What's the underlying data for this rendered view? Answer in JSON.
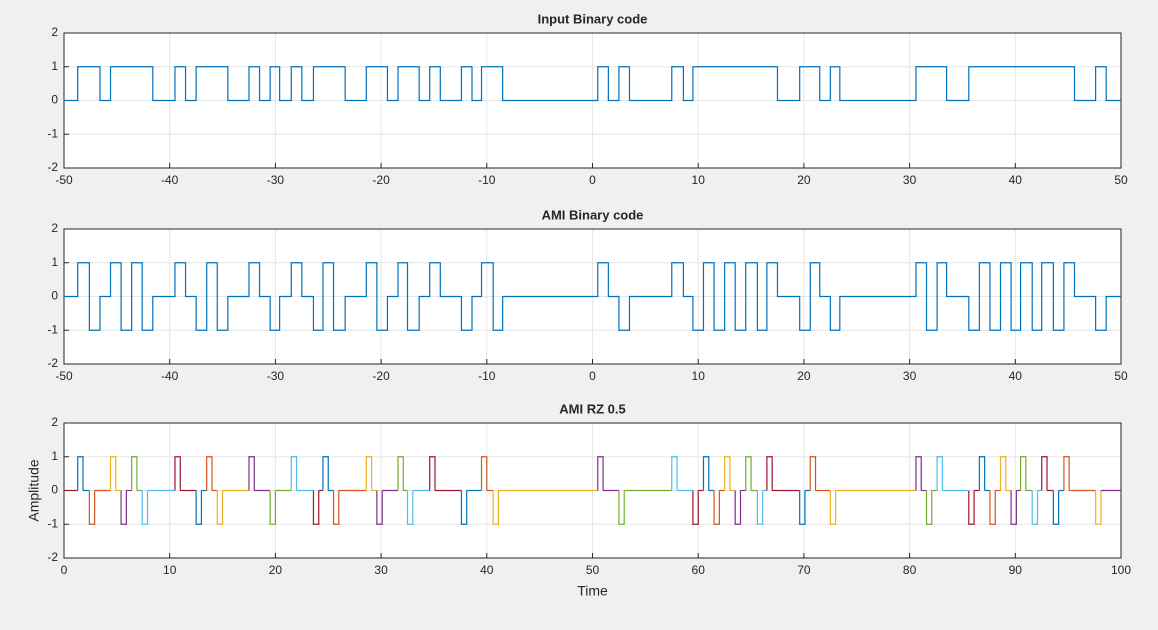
{
  "chart_data": [
    {
      "type": "step",
      "title": "Input Binary code",
      "color": "#0072bd",
      "grid": true,
      "x": [
        -50,
        -48.7,
        -46.6,
        -45.6,
        -41.6,
        -39.5,
        -38.5,
        -37.5,
        -34.5,
        -32.5,
        -31.5,
        -30.5,
        -29.6,
        -28.5,
        -27.5,
        -26.4,
        -23.4,
        -21.4,
        -19.4,
        -18.4,
        -16.4,
        -15.4,
        -14.4,
        -12.4,
        -11.4,
        -10.5,
        -8.5,
        0.5,
        1.5,
        2.5,
        3.5,
        7.5,
        8.6,
        9.5,
        17.5,
        19.6,
        21.5,
        22.5,
        23.4,
        30.6,
        33.5,
        35.6,
        45.6,
        47.6,
        48.6
      ],
      "values": [
        0,
        1,
        0,
        1,
        0,
        1,
        0,
        1,
        0,
        1,
        0,
        1,
        0,
        1,
        0,
        1,
        0,
        1,
        0,
        1,
        0,
        1,
        0,
        1,
        0,
        1,
        0,
        1,
        0,
        1,
        0,
        1,
        0,
        1,
        0,
        1,
        0,
        1,
        0,
        1,
        0,
        1,
        0,
        1,
        0
      ],
      "xlim": [
        -50,
        50
      ],
      "xticks": [
        -50,
        -40,
        -30,
        -20,
        -10,
        0,
        10,
        20,
        30,
        40,
        50
      ],
      "ylim": [
        -2,
        2
      ],
      "yticks": [
        -2,
        -1,
        0,
        1,
        2
      ]
    },
    {
      "type": "step",
      "title": "AMI Binary code",
      "color": "#0072bd",
      "grid": true,
      "x": [
        -50,
        -48.7,
        -47.6,
        -46.6,
        -45.6,
        -44.6,
        -43.6,
        -42.6,
        -41.6,
        -39.5,
        -38.5,
        -37.5,
        -36.5,
        -35.5,
        -34.5,
        -32.5,
        -31.5,
        -30.5,
        -29.6,
        -28.5,
        -27.5,
        -26.4,
        -25.5,
        -24.5,
        -23.4,
        -21.4,
        -20.4,
        -19.4,
        -18.4,
        -17.5,
        -16.4,
        -15.4,
        -14.4,
        -12.4,
        -11.4,
        -10.5,
        -9.4,
        -8.5,
        0.5,
        1.5,
        2.5,
        3.5,
        7.5,
        8.6,
        9.5,
        10.5,
        11.5,
        12.5,
        13.5,
        14.5,
        15.6,
        16.5,
        17.5,
        19.6,
        20.6,
        21.5,
        22.5,
        23.4,
        30.6,
        31.6,
        32.6,
        33.5,
        35.6,
        36.6,
        37.6,
        38.6,
        39.6,
        40.5,
        41.6,
        42.5,
        43.6,
        44.6,
        45.6,
        47.6,
        48.6
      ],
      "values": [
        0,
        1,
        -1,
        0,
        1,
        -1,
        1,
        -1,
        0,
        1,
        0,
        -1,
        1,
        -1,
        0,
        1,
        0,
        -1,
        0,
        1,
        0,
        -1,
        1,
        -1,
        0,
        1,
        -1,
        0,
        1,
        -1,
        0,
        1,
        0,
        -1,
        0,
        1,
        -1,
        0,
        1,
        0,
        -1,
        0,
        1,
        0,
        -1,
        1,
        -1,
        1,
        -1,
        1,
        -1,
        1,
        0,
        -1,
        1,
        0,
        -1,
        0,
        1,
        -1,
        1,
        0,
        -1,
        1,
        -1,
        1,
        -1,
        1,
        -1,
        1,
        -1,
        1,
        0,
        -1,
        0
      ],
      "xlim": [
        -50,
        50
      ],
      "xticks": [
        -50,
        -40,
        -30,
        -20,
        -10,
        0,
        10,
        20,
        30,
        40,
        50
      ],
      "ylim": [
        -2,
        2
      ],
      "yticks": [
        -2,
        -1,
        0,
        1,
        2
      ]
    },
    {
      "type": "pulse",
      "title": "AMI RZ 0.5",
      "x_label": "Time",
      "y_label": "Amplitude",
      "grid": true,
      "pulse_width": 0.5,
      "colors": [
        "#0072bd",
        "#d95319",
        "#edb120",
        "#7e2f8e",
        "#77ac30",
        "#4dbeee",
        "#a2142f"
      ],
      "x": [
        1.3,
        2.4,
        4.4,
        5.4,
        6.4,
        7.4,
        10.5,
        12.5,
        13.5,
        14.5,
        17.5,
        19.5,
        21.5,
        23.6,
        24.5,
        25.5,
        28.6,
        29.6,
        31.6,
        32.5,
        34.6,
        37.6,
        39.5,
        40.6,
        50.5,
        52.5,
        57.5,
        59.5,
        60.5,
        61.5,
        62.5,
        63.5,
        64.5,
        65.6,
        66.5,
        69.6,
        70.6,
        72.5,
        80.6,
        81.6,
        82.6,
        85.6,
        86.6,
        87.6,
        88.6,
        89.6,
        90.5,
        91.6,
        92.5,
        93.6,
        94.6,
        97.6
      ],
      "values": [
        1,
        -1,
        1,
        -1,
        1,
        -1,
        1,
        -1,
        1,
        -1,
        1,
        -1,
        1,
        -1,
        1,
        -1,
        1,
        -1,
        1,
        -1,
        1,
        -1,
        1,
        -1,
        1,
        -1,
        1,
        -1,
        1,
        -1,
        1,
        -1,
        1,
        -1,
        1,
        -1,
        1,
        -1,
        1,
        -1,
        1,
        -1,
        1,
        -1,
        1,
        -1,
        1,
        -1,
        1,
        -1,
        1,
        -1
      ],
      "xlim": [
        0,
        100
      ],
      "xticks": [
        0,
        10,
        20,
        30,
        40,
        50,
        60,
        70,
        80,
        90,
        100
      ],
      "ylim": [
        -2,
        2
      ],
      "yticks": [
        -2,
        -1,
        0,
        1,
        2
      ]
    }
  ]
}
